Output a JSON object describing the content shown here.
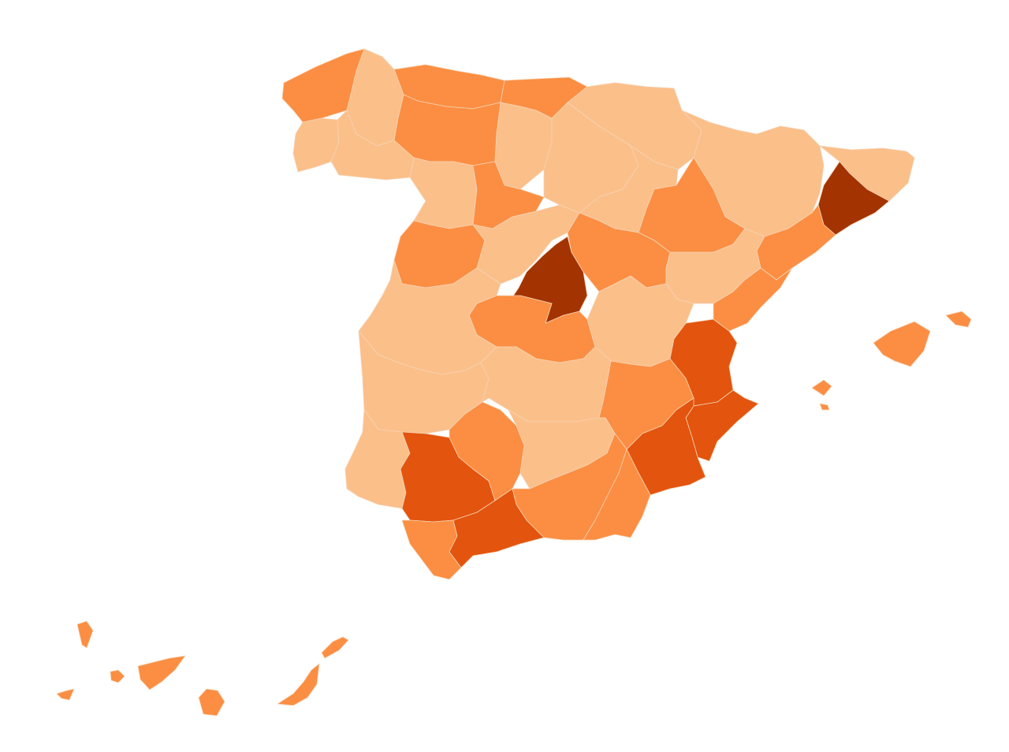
{
  "map": {
    "type": "choropleth",
    "classes": [
      {
        "id": "c1",
        "color": "#fbbf8a"
      },
      {
        "id": "c2",
        "color": "#fb8e42"
      },
      {
        "id": "c3",
        "color": "#e3540e"
      },
      {
        "id": "c4",
        "color": "#a33300"
      }
    ],
    "regions": [
      {
        "id": "a-coruna",
        "class": "c2"
      },
      {
        "id": "lugo",
        "class": "c1"
      },
      {
        "id": "pontevedra",
        "class": "c1"
      },
      {
        "id": "ourense",
        "class": "c1"
      },
      {
        "id": "asturias",
        "class": "c2"
      },
      {
        "id": "cantabria",
        "class": "c2"
      },
      {
        "id": "basque-navarra",
        "class": "c1"
      },
      {
        "id": "leon",
        "class": "c2"
      },
      {
        "id": "zamora",
        "class": "c1"
      },
      {
        "id": "palencia",
        "class": "c1"
      },
      {
        "id": "burgos",
        "class": "c1"
      },
      {
        "id": "la-rioja-soria",
        "class": "c1"
      },
      {
        "id": "valladolid",
        "class": "c2"
      },
      {
        "id": "salamanca",
        "class": "c2"
      },
      {
        "id": "avila-segovia",
        "class": "c1"
      },
      {
        "id": "huesca-lleida",
        "class": "c1"
      },
      {
        "id": "girona",
        "class": "c1"
      },
      {
        "id": "barcelona",
        "class": "c4"
      },
      {
        "id": "zaragoza",
        "class": "c2"
      },
      {
        "id": "tarragona",
        "class": "c2"
      },
      {
        "id": "teruel",
        "class": "c1"
      },
      {
        "id": "castellon",
        "class": "c2"
      },
      {
        "id": "guadalajara",
        "class": "c2"
      },
      {
        "id": "madrid",
        "class": "c4"
      },
      {
        "id": "toledo",
        "class": "c2"
      },
      {
        "id": "cuenca",
        "class": "c1"
      },
      {
        "id": "caceres",
        "class": "c1"
      },
      {
        "id": "badajoz",
        "class": "c1"
      },
      {
        "id": "ciudad-real",
        "class": "c1"
      },
      {
        "id": "albacete",
        "class": "c2"
      },
      {
        "id": "valencia",
        "class": "c3"
      },
      {
        "id": "alicante",
        "class": "c3"
      },
      {
        "id": "murcia",
        "class": "c3"
      },
      {
        "id": "huelva",
        "class": "c1"
      },
      {
        "id": "sevilla",
        "class": "c3"
      },
      {
        "id": "cordoba",
        "class": "c2"
      },
      {
        "id": "jaen",
        "class": "c1"
      },
      {
        "id": "granada",
        "class": "c2"
      },
      {
        "id": "almeria",
        "class": "c2"
      },
      {
        "id": "cadiz",
        "class": "c2"
      },
      {
        "id": "malaga",
        "class": "c3"
      },
      {
        "id": "mallorca",
        "class": "c2"
      },
      {
        "id": "menorca",
        "class": "c2"
      },
      {
        "id": "ibiza",
        "class": "c2"
      },
      {
        "id": "formentera",
        "class": "c2"
      },
      {
        "id": "la-palma",
        "class": "c2"
      },
      {
        "id": "el-hierro",
        "class": "c2"
      },
      {
        "id": "la-gomera",
        "class": "c2"
      },
      {
        "id": "tenerife",
        "class": "c2"
      },
      {
        "id": "gran-canaria",
        "class": "c2"
      },
      {
        "id": "fuerteventura",
        "class": "c2"
      },
      {
        "id": "lanzarote",
        "class": "c2"
      }
    ]
  }
}
